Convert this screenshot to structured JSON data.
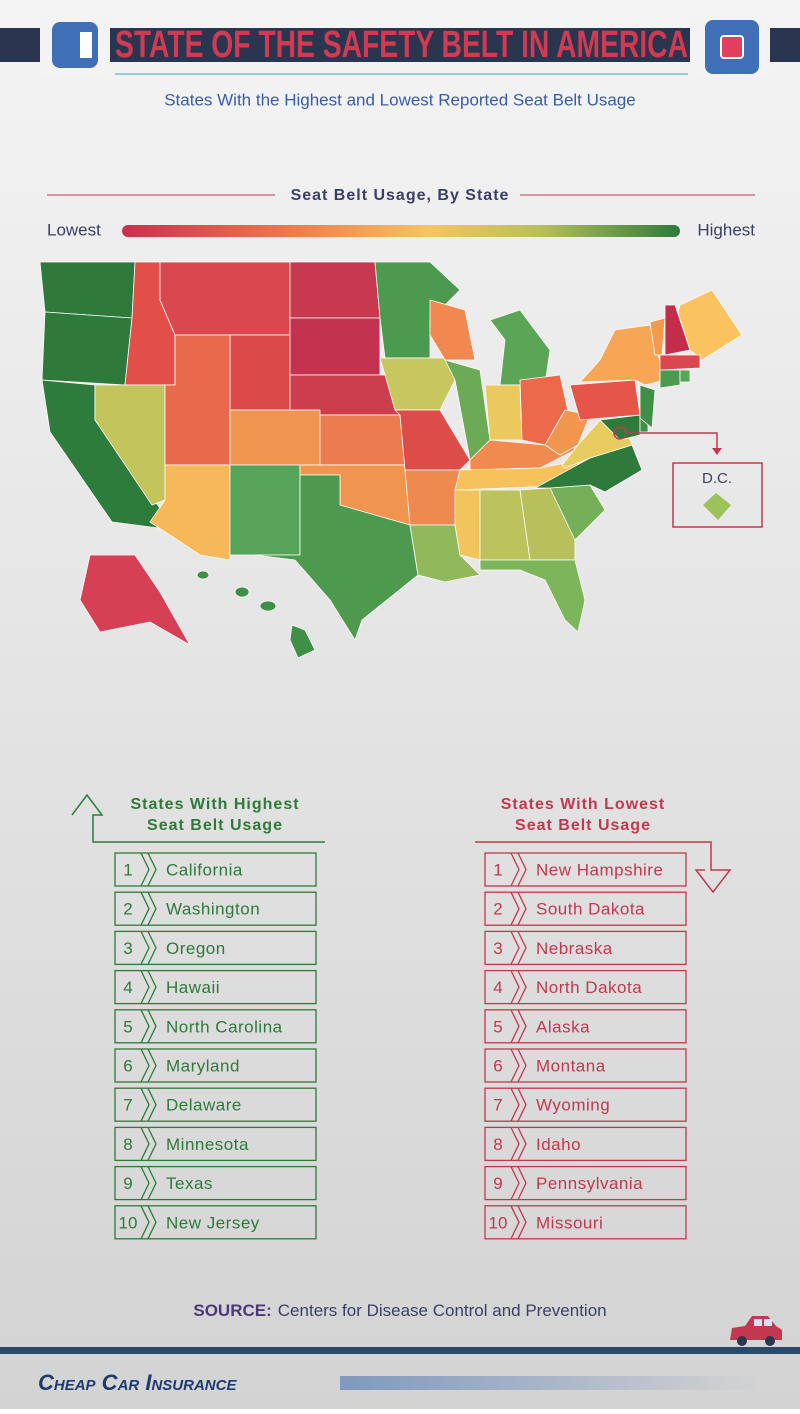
{
  "header": {
    "title": "STATE OF THE SAFETY BELT IN AMERICA",
    "subtitle": "States With the Highest and Lowest Reported Seat Belt Usage"
  },
  "map": {
    "title": "Seat Belt Usage, By State",
    "low_label": "Lowest",
    "high_label": "Highest",
    "inset_label": "D.C."
  },
  "highest": {
    "title_lines": [
      "States With Highest",
      "Seat Belt Usage"
    ],
    "items": [
      {
        "rank": 1,
        "state": "California"
      },
      {
        "rank": 2,
        "state": "Washington"
      },
      {
        "rank": 3,
        "state": "Oregon"
      },
      {
        "rank": 4,
        "state": "Hawaii"
      },
      {
        "rank": 5,
        "state": "North Carolina"
      },
      {
        "rank": 6,
        "state": "Maryland"
      },
      {
        "rank": 7,
        "state": "Delaware"
      },
      {
        "rank": 8,
        "state": "Minnesota"
      },
      {
        "rank": 9,
        "state": "Texas"
      },
      {
        "rank": 10,
        "state": "New Jersey"
      }
    ]
  },
  "lowest": {
    "title_lines": [
      "States With Lowest",
      "Seat Belt Usage"
    ],
    "items": [
      {
        "rank": 1,
        "state": "New Hampshire"
      },
      {
        "rank": 2,
        "state": "South Dakota"
      },
      {
        "rank": 3,
        "state": "Nebraska"
      },
      {
        "rank": 4,
        "state": "North Dakota"
      },
      {
        "rank": 5,
        "state": "Alaska"
      },
      {
        "rank": 6,
        "state": "Montana"
      },
      {
        "rank": 7,
        "state": "Wyoming"
      },
      {
        "rank": 8,
        "state": "Idaho"
      },
      {
        "rank": 9,
        "state": "Pennsylvania"
      },
      {
        "rank": 10,
        "state": "Missouri"
      }
    ]
  },
  "source": {
    "label": "SOURCE:",
    "text": "Centers for Disease Control and Prevention"
  },
  "footer": {
    "brand": "Cheap Car Insurance"
  }
}
